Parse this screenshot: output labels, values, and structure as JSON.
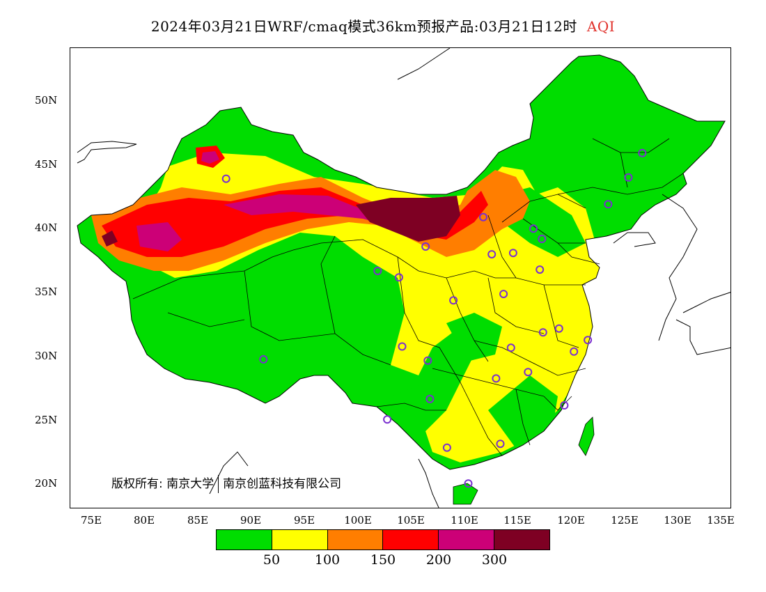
{
  "title": {
    "text": "2024年03月21日WRF/cmaq模式36km预报产品:03月21日12时",
    "variable": "AQI",
    "variable_color": "#e0302a"
  },
  "axes": {
    "lat_labels": [
      "50N",
      "45N",
      "40N",
      "35N",
      "30N",
      "25N",
      "20N"
    ],
    "lon_labels": [
      "75E",
      "80E",
      "85E",
      "90E",
      "95E",
      "100E",
      "105E",
      "110E",
      "115E",
      "120E",
      "125E",
      "130E",
      "135E"
    ],
    "lon_range": [
      73,
      135
    ],
    "lat_range": [
      18,
      54
    ]
  },
  "copyright": {
    "label": "版权所有:",
    "org1": "南京大学",
    "org2": "南京创蓝科技有限公司"
  },
  "legend": {
    "colors": [
      "#00dd00",
      "#ffff00",
      "#ff7e00",
      "#ff0000",
      "#cc0077",
      "#7e0023"
    ],
    "ticks": [
      "50",
      "100",
      "150",
      "200",
      "300"
    ]
  },
  "stations": [
    {
      "lon": 87.6,
      "lat": 43.8
    },
    {
      "lon": 91.1,
      "lat": 29.7
    },
    {
      "lon": 101.8,
      "lat": 36.6
    },
    {
      "lon": 103.8,
      "lat": 36.1
    },
    {
      "lon": 106.3,
      "lat": 38.5
    },
    {
      "lon": 111.7,
      "lat": 40.8
    },
    {
      "lon": 112.5,
      "lat": 37.9
    },
    {
      "lon": 114.5,
      "lat": 38.0
    },
    {
      "lon": 116.4,
      "lat": 39.9
    },
    {
      "lon": 117.2,
      "lat": 39.1
    },
    {
      "lon": 117.0,
      "lat": 36.7
    },
    {
      "lon": 113.6,
      "lat": 34.8
    },
    {
      "lon": 108.9,
      "lat": 34.3
    },
    {
      "lon": 104.1,
      "lat": 30.7
    },
    {
      "lon": 106.5,
      "lat": 29.6
    },
    {
      "lon": 106.7,
      "lat": 26.6
    },
    {
      "lon": 102.7,
      "lat": 25.0
    },
    {
      "lon": 108.3,
      "lat": 22.8
    },
    {
      "lon": 113.3,
      "lat": 23.1
    },
    {
      "lon": 110.3,
      "lat": 20.0
    },
    {
      "lon": 119.3,
      "lat": 26.1
    },
    {
      "lon": 115.9,
      "lat": 28.7
    },
    {
      "lon": 112.9,
      "lat": 28.2
    },
    {
      "lon": 114.3,
      "lat": 30.6
    },
    {
      "lon": 117.3,
      "lat": 31.8
    },
    {
      "lon": 118.8,
      "lat": 32.1
    },
    {
      "lon": 120.2,
      "lat": 30.3
    },
    {
      "lon": 121.5,
      "lat": 31.2
    },
    {
      "lon": 123.4,
      "lat": 41.8
    },
    {
      "lon": 125.3,
      "lat": 43.9
    },
    {
      "lon": 126.6,
      "lat": 45.8
    }
  ]
}
